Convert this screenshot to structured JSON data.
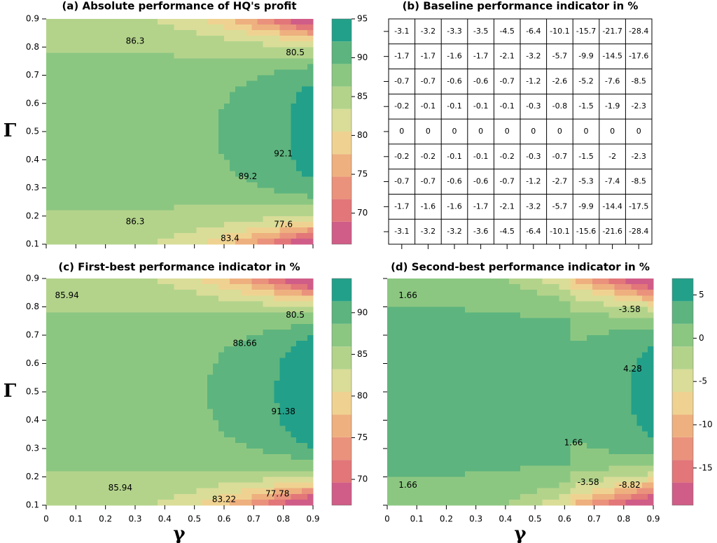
{
  "chart_data": [
    {
      "type": "contour",
      "title": "(a) Absolute performance of HQ's profit",
      "ylabel": "Γ",
      "xlim": [
        0,
        0.9
      ],
      "ylim": [
        0.1,
        0.9
      ],
      "xticks": [
        0,
        0.1,
        0.2,
        0.3,
        0.4,
        0.5,
        0.6,
        0.7,
        0.8,
        0.9
      ],
      "yticks": [
        0.1,
        0.2,
        0.3,
        0.4,
        0.5,
        0.6,
        0.7,
        0.8,
        0.9
      ],
      "levels": [
        66,
        68.9,
        71.8,
        74.7,
        77.6,
        80.5,
        83.4,
        86.3,
        89.2,
        92.1,
        95
      ],
      "colorbar_ticks": [
        70,
        75,
        80,
        85,
        90,
        95
      ],
      "colors": [
        "#d05d87",
        "#e27679",
        "#ea927c",
        "#eeb07f",
        "#efd291",
        "#d9dd98",
        "#b3d38b",
        "#8cc782",
        "#5db47e",
        "#22a08a"
      ],
      "contour_labels": [
        86.3,
        86.3,
        80.5,
        92.1,
        89.2,
        83.4,
        77.6
      ]
    },
    {
      "type": "table",
      "title": "(b) Baseline performance indicator in %",
      "rows": [
        [
          -3.1,
          -3.2,
          -3.3,
          -3.5,
          -4.5,
          -6.4,
          -10.1,
          -15.7,
          -21.7,
          -28.4
        ],
        [
          -1.7,
          -1.7,
          -1.6,
          -1.7,
          -2.1,
          -3.2,
          -5.7,
          -9.9,
          -14.5,
          -17.6
        ],
        [
          -0.7,
          -0.7,
          -0.6,
          -0.6,
          -0.7,
          -1.2,
          -2.6,
          -5.2,
          -7.6,
          -8.5
        ],
        [
          -0.2,
          -0.1,
          -0.1,
          -0.1,
          -0.1,
          -0.3,
          -0.8,
          -1.5,
          -1.9,
          -2.3
        ],
        [
          0,
          0,
          0,
          0,
          0,
          0,
          0,
          0,
          0,
          0
        ],
        [
          -0.2,
          -0.2,
          -0.1,
          -0.1,
          -0.2,
          -0.3,
          -0.7,
          -1.5,
          -2,
          -2.3
        ],
        [
          -0.7,
          -0.7,
          -0.6,
          -0.6,
          -0.7,
          -1.2,
          -2.7,
          -5.3,
          -7.4,
          -8.5
        ],
        [
          -1.7,
          -1.6,
          -1.6,
          -1.7,
          -2.1,
          -3.2,
          -5.7,
          -9.9,
          -14.4,
          -17.5
        ],
        [
          -3.1,
          -3.2,
          -3.2,
          -3.6,
          -4.5,
          -6.4,
          -10.1,
          -15.6,
          -21.6,
          -28.4
        ]
      ]
    },
    {
      "type": "contour",
      "title": "(c) First-best performance indicator in %",
      "xlabel": "γ",
      "ylabel": "Γ",
      "xlim": [
        0,
        0.9
      ],
      "ylim": [
        0.1,
        0.9
      ],
      "xticks": [
        0,
        0.1,
        0.2,
        0.3,
        0.4,
        0.5,
        0.6,
        0.7,
        0.8,
        0.9
      ],
      "yticks": [
        0.1,
        0.2,
        0.3,
        0.4,
        0.5,
        0.6,
        0.7,
        0.8,
        0.9
      ],
      "levels": [
        66.9,
        69.62,
        72.34,
        75.06,
        77.78,
        80.5,
        83.22,
        85.94,
        88.66,
        91.38,
        94.1
      ],
      "colorbar_ticks": [
        70,
        75,
        80,
        85,
        90
      ],
      "colors": [
        "#d05d87",
        "#e27679",
        "#ea927c",
        "#eeb07f",
        "#efd291",
        "#d9dd98",
        "#b3d38b",
        "#8cc782",
        "#5db47e",
        "#22a08a"
      ],
      "contour_labels": [
        85.94,
        85.94,
        80.5,
        88.66,
        91.38,
        83.22,
        77.78
      ]
    },
    {
      "type": "contour",
      "title": "(d) Second-best performance indicator in %",
      "xlabel": "γ",
      "xlim": [
        0,
        0.9
      ],
      "ylim": [
        0.1,
        0.9
      ],
      "xticks": [
        0,
        0.1,
        0.2,
        0.3,
        0.4,
        0.5,
        0.6,
        0.7,
        0.8,
        0.9
      ],
      "yticks": [
        0.1,
        0.2,
        0.3,
        0.4,
        0.5,
        0.6,
        0.7,
        0.8,
        0.9
      ],
      "levels": [
        -19.3,
        -16.68,
        -14.06,
        -11.44,
        -8.82,
        -6.2,
        -3.58,
        -0.96,
        1.66,
        4.28,
        6.9
      ],
      "colorbar_ticks": [
        -15,
        -10,
        -5,
        0,
        5
      ],
      "colors": [
        "#d05d87",
        "#e27679",
        "#ea927c",
        "#eeb07f",
        "#efd291",
        "#d9dd98",
        "#b3d38b",
        "#8cc782",
        "#5db47e",
        "#22a08a"
      ],
      "contour_labels": [
        1.66,
        1.66,
        -3.58,
        4.28,
        1.66,
        -3.58,
        -8.82
      ]
    }
  ]
}
